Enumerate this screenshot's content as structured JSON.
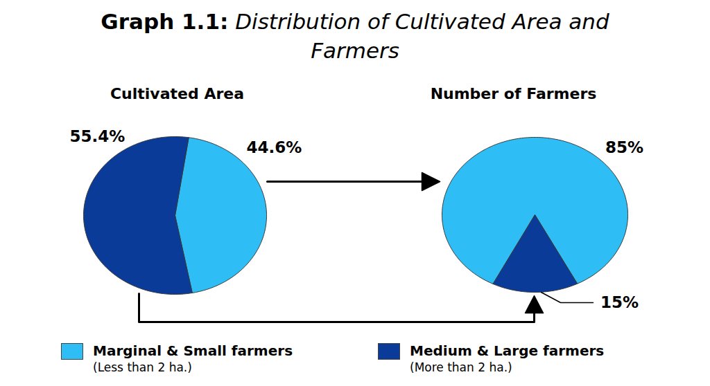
{
  "title": "Graph 1.1: Distribution of Cultivated Area and Farmers",
  "legend": "bottom",
  "chart_data": [
    {
      "type": "pie",
      "title": "Cultivated Area",
      "categories": [
        "Marginal & Small farmers (Less than 2 ha.)",
        "Medium & Large farmers (More than 2 ha.)"
      ],
      "values": [
        44.6,
        55.4
      ],
      "value_labels": [
        "44.6%",
        "55.4%"
      ],
      "colors": [
        "#2ebef5",
        "#0b3b99"
      ],
      "data_labels": true
    },
    {
      "type": "pie",
      "title": "Number of Farmers",
      "categories": [
        "Marginal & Small farmers (Less than 2 ha.)",
        "Medium & Large farmers (More than 2 ha.)"
      ],
      "values": [
        85,
        15
      ],
      "value_labels": [
        "85%",
        "15%"
      ],
      "colors": [
        "#2ebef5",
        "#0b3b99"
      ],
      "data_labels": true
    }
  ]
}
